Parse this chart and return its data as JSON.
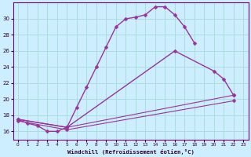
{
  "xlabel": "Windchill (Refroidissement éolien,°C)",
  "color": "#993399",
  "bg_color": "#cceeff",
  "grid_color": "#aadddd",
  "xlim": [
    -0.5,
    23.5
  ],
  "ylim": [
    15.0,
    32.0
  ],
  "yticks": [
    16,
    18,
    20,
    22,
    24,
    26,
    28,
    30
  ],
  "xticks": [
    0,
    1,
    2,
    3,
    4,
    5,
    6,
    7,
    8,
    9,
    10,
    11,
    12,
    13,
    14,
    15,
    16,
    17,
    18,
    19,
    20,
    21,
    22,
    23
  ],
  "curve1_x": [
    0,
    1,
    2,
    3,
    4,
    5,
    6,
    7,
    8,
    9,
    10,
    11,
    12,
    13,
    14,
    15,
    16,
    17,
    18
  ],
  "curve1_y": [
    17.5,
    17.0,
    16.7,
    16.0,
    16.0,
    16.5,
    19.0,
    21.5,
    24.0,
    26.5,
    29.0,
    30.0,
    30.2,
    30.5,
    31.5,
    31.5,
    30.5,
    29.0,
    27.0
  ],
  "curve2_x": [
    0,
    5,
    16,
    20,
    21,
    22
  ],
  "curve2_y": [
    17.5,
    16.5,
    26.0,
    23.5,
    22.5,
    20.5
  ],
  "curve3_x": [
    0,
    5,
    22
  ],
  "curve3_y": [
    17.5,
    16.5,
    20.5
  ],
  "curve4_x": [
    0,
    5,
    22
  ],
  "curve4_y": [
    17.3,
    16.2,
    19.8
  ]
}
